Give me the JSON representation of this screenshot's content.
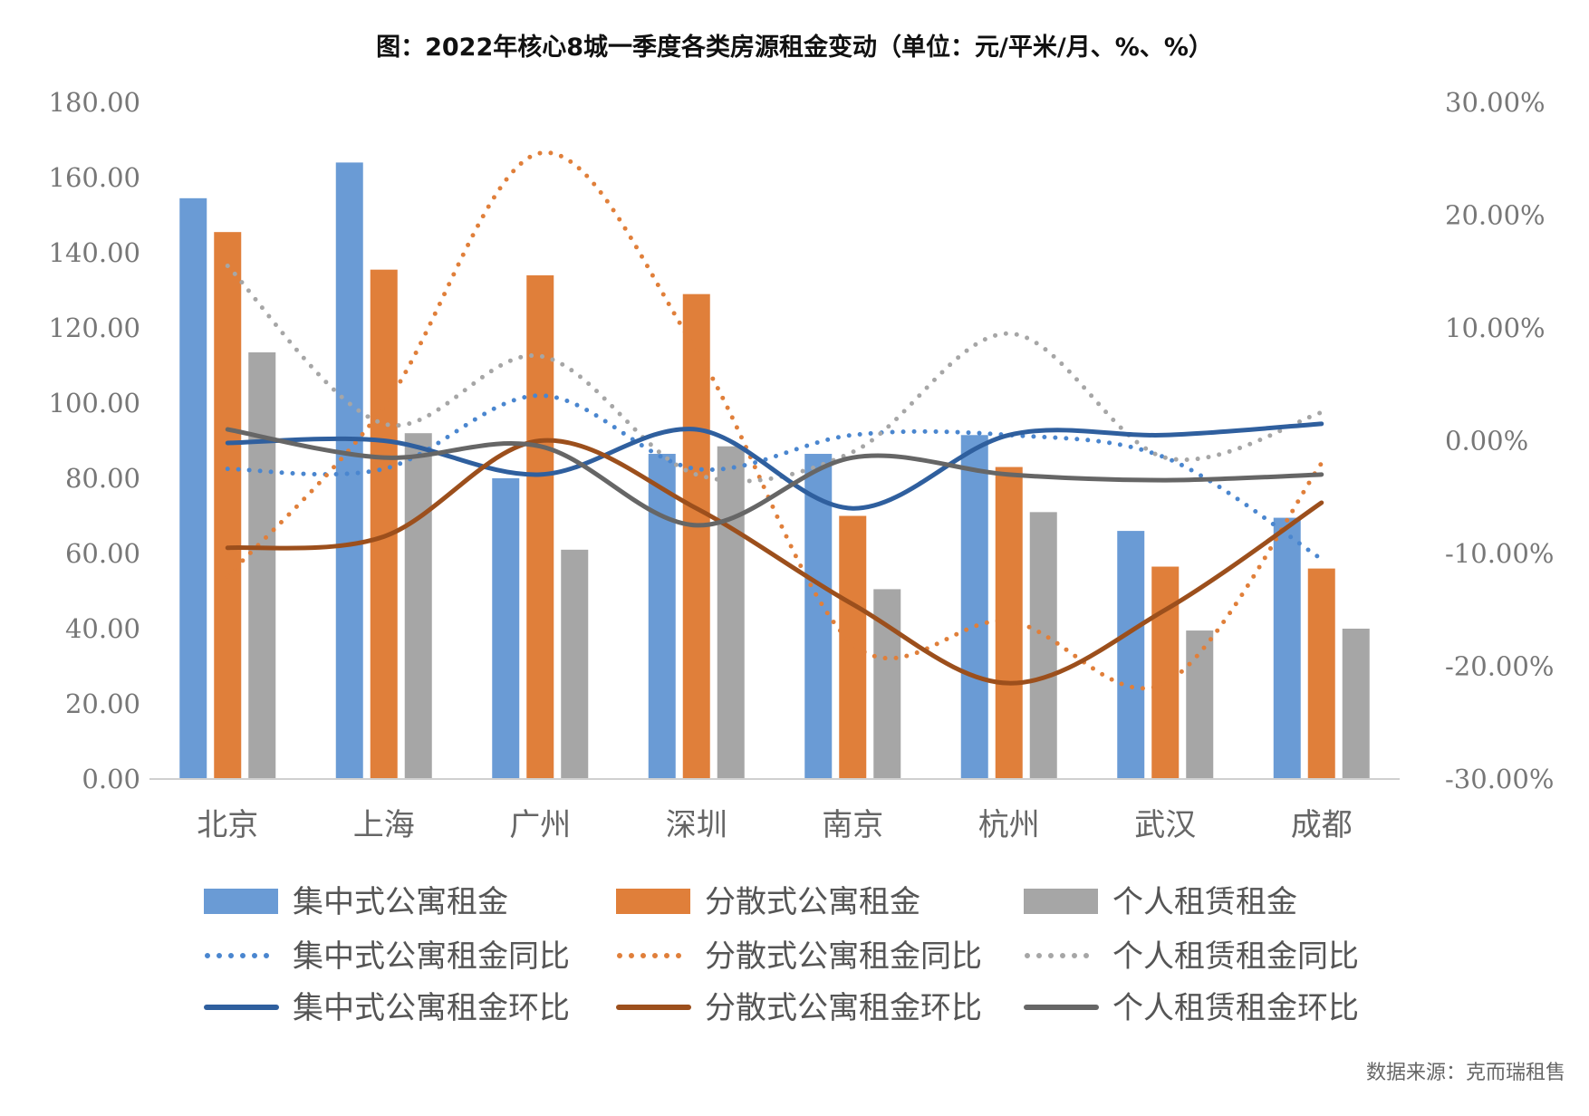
{
  "title": "图：2022年核心8城一季度各类房源租金变动（单位：元/平米/月、%、%）",
  "source": "数据来源：克而瑞租售",
  "chart_data": {
    "type": "bar",
    "categories": [
      "北京",
      "上海",
      "广州",
      "深圳",
      "南京",
      "杭州",
      "武汉",
      "成都"
    ],
    "y_left": {
      "min": 0,
      "max": 180,
      "step": 20,
      "tick_labels": [
        "0.00",
        "20.00",
        "40.00",
        "60.00",
        "80.00",
        "100.00",
        "120.00",
        "140.00",
        "160.00",
        "180.00"
      ]
    },
    "y_right": {
      "min": -30,
      "max": 30,
      "step": 10,
      "tick_labels": [
        "-30.00%",
        "-20.00%",
        "-10.00%",
        "0.00%",
        "10.00%",
        "20.00%",
        "30.00%"
      ]
    },
    "grid": false,
    "legend_position": "bottom",
    "bar_series": [
      {
        "name": "集中式公寓租金",
        "color": "#6a9bd5",
        "values": [
          154.5,
          164.0,
          80.0,
          86.5,
          86.5,
          91.5,
          66.0,
          69.5
        ]
      },
      {
        "name": "分散式公寓租金",
        "color": "#e07f3a",
        "values": [
          145.5,
          135.5,
          134.0,
          129.0,
          70.0,
          83.0,
          56.5,
          56.0
        ]
      },
      {
        "name": "个人租赁租金",
        "color": "#a6a6a6",
        "values": [
          113.5,
          92.0,
          61.0,
          88.5,
          50.5,
          71.0,
          39.5,
          40.0
        ]
      }
    ],
    "line_series": [
      {
        "name": "集中式公寓租金同比",
        "color": "#4a86cf",
        "style": "dotted",
        "values": [
          -2.5,
          -2.5,
          4.0,
          -2.5,
          0.5,
          0.5,
          -1.5,
          -10.5
        ]
      },
      {
        "name": "分散式公寓租金同比",
        "color": "#e07f3a",
        "style": "dotted",
        "values": [
          -12.0,
          3.0,
          25.5,
          8.0,
          -18.0,
          -16.0,
          -21.5,
          -2.0
        ]
      },
      {
        "name": "个人租赁租金同比",
        "color": "#a6a6a6",
        "style": "dotted",
        "values": [
          15.5,
          1.5,
          7.5,
          -3.0,
          -1.0,
          9.5,
          -1.5,
          2.5
        ]
      },
      {
        "name": "集中式公寓租金环比",
        "color": "#2f5f9e",
        "style": "solid",
        "values": [
          -0.2,
          0.0,
          -3.0,
          1.0,
          -6.0,
          0.5,
          0.5,
          1.5
        ]
      },
      {
        "name": "分散式公寓租金环比",
        "color": "#9c4f1c",
        "style": "solid",
        "values": [
          -9.5,
          -8.5,
          0.0,
          -6.0,
          -14.5,
          -21.5,
          -15.0,
          -5.5
        ]
      },
      {
        "name": "个人租赁租金环比",
        "color": "#666666",
        "style": "solid",
        "values": [
          1.0,
          -1.5,
          -0.5,
          -7.5,
          -1.5,
          -3.0,
          -3.5,
          -3.0
        ]
      }
    ]
  }
}
